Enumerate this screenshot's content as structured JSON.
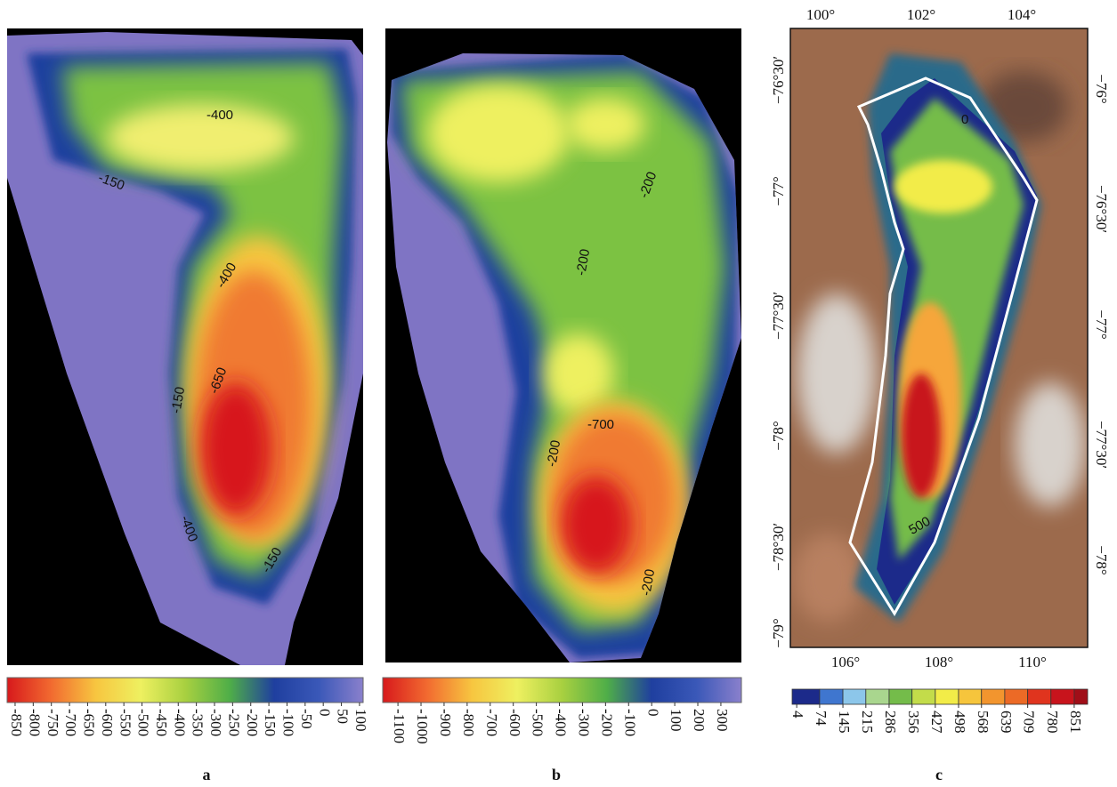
{
  "panels": [
    {
      "label": "a",
      "contour_labels": [
        "-400",
        "-150",
        "-400",
        "-650",
        "-150",
        "-400",
        "-150"
      ],
      "colorbar": {
        "range": [
          -872,
          110
        ],
        "ticks": [
          -850,
          -800,
          -750,
          -700,
          -650,
          -600,
          -550,
          -500,
          -450,
          -400,
          -350,
          -300,
          -250,
          -200,
          -150,
          -100,
          -50,
          0,
          50,
          100
        ],
        "colors": [
          "#d7191c",
          "#f26b30",
          "#f7c640",
          "#eef060",
          "#a8d040",
          "#4fae48",
          "#1f3f9f",
          "#3a58b8",
          "#8a80cc"
        ]
      }
    },
    {
      "label": "b",
      "contour_labels": [
        "-200",
        "-200",
        "-700",
        "-200",
        "-200"
      ],
      "colorbar": {
        "range": [
          -1166,
          389
        ],
        "ticks": [
          -1100,
          -1000,
          -900,
          -800,
          -700,
          -600,
          -500,
          -400,
          -300,
          -200,
          -100,
          0,
          100,
          200,
          300
        ],
        "colors": [
          "#d7191c",
          "#f26b30",
          "#f7c640",
          "#eef060",
          "#a8d040",
          "#4fae48",
          "#1f3f9f",
          "#3a58b8",
          "#8a80cc"
        ]
      }
    },
    {
      "label": "c",
      "contour_labels": [
        "0",
        "500"
      ],
      "top_labels": [
        "100°",
        "102°",
        "104°"
      ],
      "bottom_labels": [
        "106°",
        "108°",
        "110°"
      ],
      "left_labels": [
        "−76°30′",
        "−77°",
        "−77°30′",
        "−78°",
        "−78°30′",
        "−79°"
      ],
      "right_labels": [
        "−76°",
        "−76°30′",
        "−77°",
        "−77°30′",
        "−78°"
      ],
      "colorbar": {
        "range": [
          -10,
          892
        ],
        "ticks": [
          4,
          74,
          145,
          215,
          286,
          356,
          427,
          498,
          568,
          639,
          709,
          780,
          851
        ],
        "colors": [
          "#1c2a8a",
          "#3f76cf",
          "#8cc6ea",
          "#a9d68e",
          "#74bc4a",
          "#c3dc4a",
          "#f2ec48",
          "#f6c53c",
          "#f2952e",
          "#ec6a26",
          "#e0341e",
          "#c8141c",
          "#a00e18"
        ]
      }
    }
  ]
}
